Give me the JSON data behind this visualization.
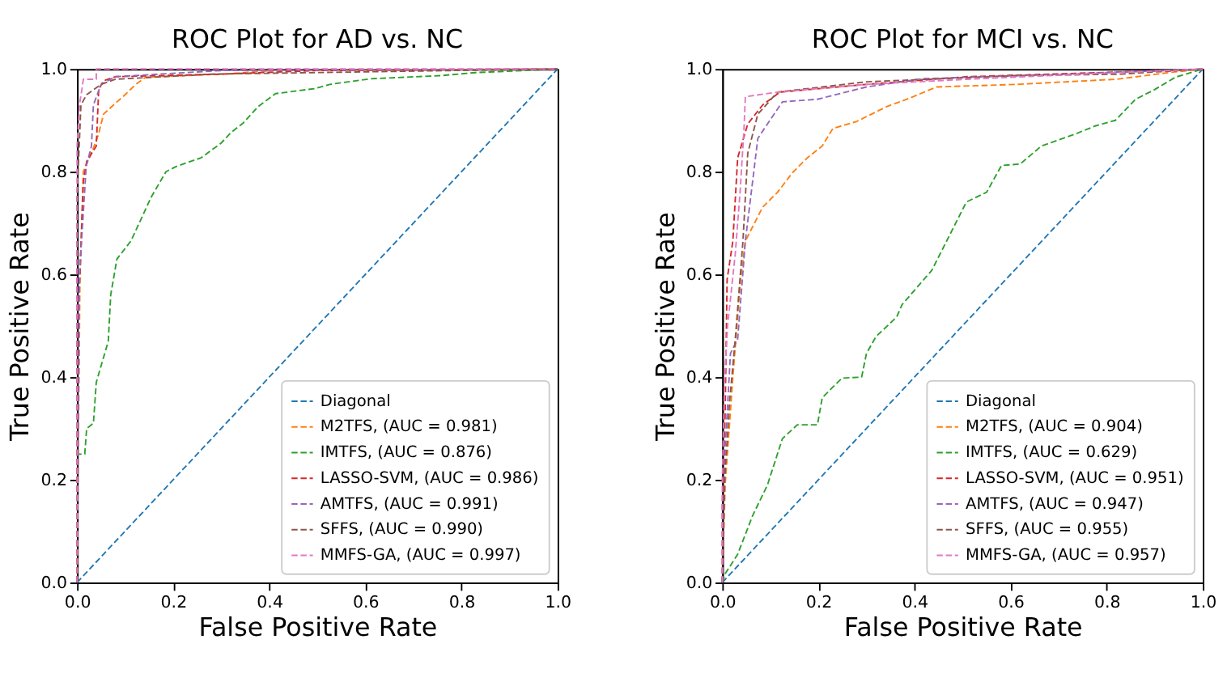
{
  "chart_data": [
    {
      "type": "line",
      "title": "ROC Plot for AD vs. NC",
      "xlabel": "False Positive Rate",
      "ylabel": "True Positive Rate",
      "xlim": [
        0,
        1
      ],
      "ylim": [
        0,
        1
      ],
      "xticks": [
        {
          "value": 0,
          "label": "0.0"
        },
        {
          "value": 0.2,
          "label": "0.2"
        },
        {
          "value": 0.4,
          "label": "0.4"
        },
        {
          "value": 0.6,
          "label": "0.6"
        },
        {
          "value": 0.8,
          "label": "0.8"
        },
        {
          "value": 1,
          "label": "1.0"
        }
      ],
      "yticks": [
        {
          "value": 0,
          "label": "0.0"
        },
        {
          "value": 0.2,
          "label": "0.2"
        },
        {
          "value": 0.4,
          "label": "0.4"
        },
        {
          "value": 0.6,
          "label": "0.6"
        },
        {
          "value": 0.8,
          "label": "0.8"
        },
        {
          "value": 1,
          "label": "1.0"
        }
      ],
      "grid": false,
      "legend": "bottom right",
      "line_style": "dashed",
      "marker": "none",
      "series": [
        {
          "name": "Diagonal",
          "color": "#1f77b4",
          "x": [
            0,
            1
          ],
          "values": [
            0,
            1
          ]
        },
        {
          "name": "M2TFS, (AUC = 0.981)",
          "color": "#ff7f0e",
          "x": [
            0,
            0.003,
            0.006,
            0.013,
            0.034,
            0.045,
            0.055,
            0.076,
            0.1,
            0.122,
            0.143,
            0.3,
            0.41,
            1
          ],
          "values": [
            0,
            0.3,
            0.59,
            0.8,
            0.846,
            0.874,
            0.912,
            0.93,
            0.95,
            0.97,
            0.984,
            0.99,
            0.997,
            1
          ]
        },
        {
          "name": "IMTFS, (AUC = 0.876)",
          "color": "#2ca02c",
          "x": [
            0,
            0,
            0.016,
            0.02,
            0.034,
            0.04,
            0.065,
            0.07,
            0.083,
            0.112,
            0.122,
            0.154,
            0.185,
            0.206,
            0.258,
            0.299,
            0.32,
            0.346,
            0.377,
            0.413,
            0.496,
            0.526,
            0.611,
            0.756,
            0.829,
            0.88,
            1
          ],
          "values": [
            0,
            0.25,
            0.25,
            0.3,
            0.31,
            0.39,
            0.47,
            0.56,
            0.63,
            0.665,
            0.685,
            0.75,
            0.8,
            0.81,
            0.827,
            0.855,
            0.876,
            0.895,
            0.927,
            0.952,
            0.962,
            0.97,
            0.981,
            0.987,
            0.993,
            0.995,
            1
          ]
        },
        {
          "name": "LASSO-SVM, (AUC = 0.986)",
          "color": "#d62728",
          "x": [
            0,
            0,
            0.006,
            0.013,
            0.02,
            0.04,
            0.045,
            0.055,
            0.08,
            0.3,
            0.5,
            1
          ],
          "values": [
            0,
            0.5,
            0.6,
            0.78,
            0.82,
            0.85,
            0.96,
            0.977,
            0.985,
            0.99,
            0.997,
            1
          ]
        },
        {
          "name": "AMTFS, (AUC = 0.991)",
          "color": "#9467bd",
          "x": [
            0,
            0.005,
            0.019,
            0.03,
            0.034,
            0.05,
            0.08,
            0.3,
            1
          ],
          "values": [
            0,
            0.6,
            0.81,
            0.85,
            0.93,
            0.97,
            0.985,
            0.997,
            1
          ]
        },
        {
          "name": "SFFS, (AUC = 0.990)",
          "color": "#8c564b",
          "x": [
            0,
            0,
            0.008,
            0.02,
            0.05,
            0.08,
            0.28,
            1
          ],
          "values": [
            0,
            0.75,
            0.93,
            0.95,
            0.97,
            0.98,
            0.99,
            1
          ]
        },
        {
          "name": "MMFS-GA, (AUC = 0.997)",
          "color": "#e377c2",
          "x": [
            0,
            0,
            0.005,
            0.01,
            0.013,
            0.04,
            0.04,
            1
          ],
          "values": [
            0,
            0.85,
            0.93,
            0.96,
            0.98,
            0.98,
            1,
            1
          ]
        }
      ]
    },
    {
      "type": "line",
      "title": "ROC Plot for MCI vs. NC",
      "xlabel": "False Positive Rate",
      "ylabel": "True Positive Rate",
      "xlim": [
        0,
        1
      ],
      "ylim": [
        0,
        1
      ],
      "xticks": [
        {
          "value": 0,
          "label": "0.0"
        },
        {
          "value": 0.2,
          "label": "0.2"
        },
        {
          "value": 0.4,
          "label": "0.4"
        },
        {
          "value": 0.6,
          "label": "0.6"
        },
        {
          "value": 0.8,
          "label": "0.8"
        },
        {
          "value": 1,
          "label": "1.0"
        }
      ],
      "yticks": [
        {
          "value": 0,
          "label": "0.0"
        },
        {
          "value": 0.2,
          "label": "0.2"
        },
        {
          "value": 0.4,
          "label": "0.4"
        },
        {
          "value": 0.6,
          "label": "0.6"
        },
        {
          "value": 0.8,
          "label": "0.8"
        },
        {
          "value": 1,
          "label": "1.0"
        }
      ],
      "grid": false,
      "legend": "bottom right",
      "line_style": "dashed",
      "marker": "none",
      "series": [
        {
          "name": "Diagonal",
          "color": "#1f77b4",
          "x": [
            0,
            1
          ],
          "values": [
            0,
            1
          ]
        },
        {
          "name": "M2TFS, (AUC = 0.904)",
          "color": "#ff7f0e",
          "x": [
            0,
            0.006,
            0.022,
            0.038,
            0.048,
            0.084,
            0.115,
            0.146,
            0.177,
            0.208,
            0.23,
            0.28,
            0.343,
            0.384,
            0.446,
            0.612,
            0.82,
            0.93,
            1
          ],
          "values": [
            0,
            0.19,
            0.4,
            0.589,
            0.665,
            0.731,
            0.76,
            0.798,
            0.827,
            0.85,
            0.884,
            0.898,
            0.927,
            0.941,
            0.965,
            0.97,
            0.98,
            0.993,
            1
          ]
        },
        {
          "name": "IMTFS, (AUC = 0.629)",
          "color": "#2ca02c",
          "x": [
            0,
            0.006,
            0.032,
            0.063,
            0.094,
            0.125,
            0.156,
            0.198,
            0.208,
            0.249,
            0.29,
            0.3,
            0.32,
            0.363,
            0.374,
            0.436,
            0.508,
            0.55,
            0.581,
            0.62,
            0.664,
            0.736,
            0.776,
            0.818,
            0.86,
            0.9,
            0.943,
            1
          ],
          "values": [
            0,
            0.017,
            0.055,
            0.13,
            0.19,
            0.28,
            0.307,
            0.307,
            0.36,
            0.398,
            0.4,
            0.446,
            0.479,
            0.517,
            0.541,
            0.608,
            0.741,
            0.76,
            0.812,
            0.815,
            0.85,
            0.874,
            0.889,
            0.9,
            0.941,
            0.96,
            0.984,
            1
          ]
        },
        {
          "name": "LASSO-SVM, (AUC = 0.951)",
          "color": "#d62728",
          "x": [
            0,
            0,
            0.006,
            0.01,
            0.022,
            0.032,
            0.053,
            0.084,
            0.12,
            0.3,
            0.51,
            0.96,
            1
          ],
          "values": [
            0,
            0.15,
            0.33,
            0.59,
            0.665,
            0.827,
            0.893,
            0.93,
            0.955,
            0.97,
            0.985,
            0.998,
            1
          ]
        },
        {
          "name": "AMTFS, (AUC = 0.947)",
          "color": "#9467bd",
          "x": [
            0,
            0.006,
            0.017,
            0.032,
            0.048,
            0.074,
            0.125,
            0.198,
            0.3,
            0.415,
            0.72,
            1
          ],
          "values": [
            0,
            0.26,
            0.446,
            0.474,
            0.665,
            0.865,
            0.936,
            0.941,
            0.965,
            0.981,
            0.99,
            1
          ]
        },
        {
          "name": "SFFS, (AUC = 0.955)",
          "color": "#8c564b",
          "x": [
            0,
            0.005,
            0.015,
            0.027,
            0.043,
            0.053,
            0.074,
            0.115,
            0.3,
            0.61,
            0.83,
            1
          ],
          "values": [
            0,
            0.2,
            0.35,
            0.474,
            0.665,
            0.836,
            0.912,
            0.955,
            0.975,
            0.987,
            0.99,
            1
          ]
        },
        {
          "name": "MMFS-GA, (AUC = 0.957)",
          "color": "#e377c2",
          "x": [
            0,
            0,
            0.005,
            0.011,
            0.027,
            0.037,
            0.045,
            0.048,
            0.115,
            0.3,
            0.51,
            0.82,
            1
          ],
          "values": [
            0,
            0.2,
            0.4,
            0.5,
            0.64,
            0.76,
            0.88,
            0.946,
            0.955,
            0.97,
            0.98,
            0.993,
            1
          ]
        }
      ]
    }
  ]
}
